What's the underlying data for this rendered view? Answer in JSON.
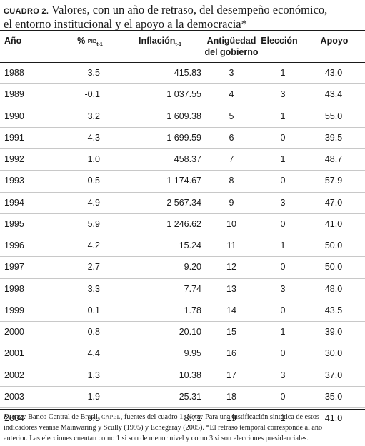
{
  "title": {
    "label": "CUADRO 2.",
    "line1": " Valores, con un año de retraso, del desempeño económico,",
    "line2": "el entorno institucional y el apoyo a la democracia*"
  },
  "headers": {
    "year": "Año",
    "pib_pct": "% ",
    "pib_name": "PIB",
    "pib_sub": "t-1",
    "inflacion": "Inflación",
    "inflacion_sub": "t-1",
    "antiguedad_l1": "Antigüedad",
    "antiguedad_l2": "del gobierno",
    "eleccion": "Elección",
    "apoyo": "Apoyo"
  },
  "rows": [
    {
      "year": "1988",
      "pib": "3.5",
      "inflacion": "415.83",
      "antiguedad": "3",
      "eleccion": "1",
      "apoyo": "43.0"
    },
    {
      "year": "1989",
      "pib": "-0.1",
      "inflacion": "1 037.55",
      "antiguedad": "4",
      "eleccion": "3",
      "apoyo": "43.4"
    },
    {
      "year": "1990",
      "pib": "3.2",
      "inflacion": "1 609.38",
      "antiguedad": "5",
      "eleccion": "1",
      "apoyo": "55.0"
    },
    {
      "year": "1991",
      "pib": "-4.3",
      "inflacion": "1 699.59",
      "antiguedad": "6",
      "eleccion": "0",
      "apoyo": "39.5"
    },
    {
      "year": "1992",
      "pib": "1.0",
      "inflacion": "458.37",
      "antiguedad": "7",
      "eleccion": "1",
      "apoyo": "48.7"
    },
    {
      "year": "1993",
      "pib": "-0.5",
      "inflacion": "1 174.67",
      "antiguedad": "8",
      "eleccion": "0",
      "apoyo": "57.9"
    },
    {
      "year": "1994",
      "pib": "4.9",
      "inflacion": "2 567.34",
      "antiguedad": "9",
      "eleccion": "3",
      "apoyo": "47.0"
    },
    {
      "year": "1995",
      "pib": "5.9",
      "inflacion": "1 246.62",
      "antiguedad": "10",
      "eleccion": "0",
      "apoyo": "41.0"
    },
    {
      "year": "1996",
      "pib": "4.2",
      "inflacion": "15.24",
      "antiguedad": "11",
      "eleccion": "1",
      "apoyo": "50.0"
    },
    {
      "year": "1997",
      "pib": "2.7",
      "inflacion": "9.20",
      "antiguedad": "12",
      "eleccion": "0",
      "apoyo": "50.0"
    },
    {
      "year": "1998",
      "pib": "3.3",
      "inflacion": "7.74",
      "antiguedad": "13",
      "eleccion": "3",
      "apoyo": "48.0"
    },
    {
      "year": "1999",
      "pib": "0.1",
      "inflacion": "1.78",
      "antiguedad": "14",
      "eleccion": "0",
      "apoyo": "43.5"
    },
    {
      "year": "2000",
      "pib": "0.8",
      "inflacion": "20.10",
      "antiguedad": "15",
      "eleccion": "1",
      "apoyo": "39.0"
    },
    {
      "year": "2001",
      "pib": "4.4",
      "inflacion": "9.95",
      "antiguedad": "16",
      "eleccion": "0",
      "apoyo": "30.0"
    },
    {
      "year": "2002",
      "pib": "1.3",
      "inflacion": "10.38",
      "antiguedad": "17",
      "eleccion": "3",
      "apoyo": "37.0"
    },
    {
      "year": "2003",
      "pib": "1.9",
      "inflacion": "25.31",
      "antiguedad": "18",
      "eleccion": "0",
      "apoyo": "35.0"
    },
    {
      "year": "2004",
      "pib": "0.5",
      "inflacion": "8.71",
      "antiguedad": "19",
      "eleccion": "1",
      "apoyo": "41.0"
    }
  ],
  "footnote": {
    "fuente_label": "Fuente:",
    "fuente_a": " Banco Central de Brasil, ",
    "capel": "CAPEL",
    "fuente_b": ", fuentes del cuadro 1. ",
    "nota_label": "Nota:",
    "nota_text": " Para una justificación sintética de estos",
    "line2": "indicadores véanse Mainwaring y Scully (1995) y Echegaray (2005). *El retraso temporal corresponde al año",
    "line3": "anterior. Las elecciones cuentan como 1 si son de menor nivel y como 3 si son elecciones presidenciales."
  }
}
